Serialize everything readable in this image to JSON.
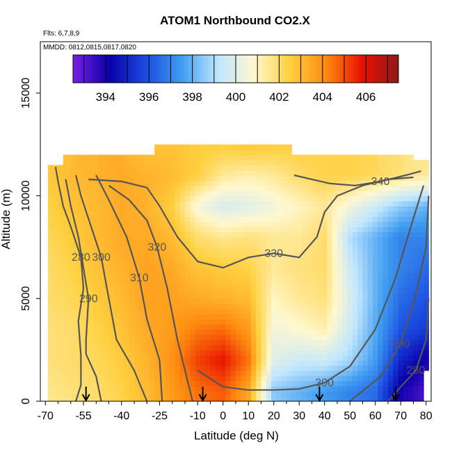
{
  "title": "ATOM1 Northbound CO2.X",
  "flights_label": "Flts: 6,7,8,9",
  "dates_label": "MMDD: 0812,0815,0817,0820",
  "chart_data": {
    "type": "heatmap",
    "title": "ATOM1 Northbound CO2.X",
    "xlabel": "Latitude (deg N)",
    "ylabel": "Altitude (m)",
    "xlim": [
      -72,
      82
    ],
    "ylim": [
      0,
      17500
    ],
    "x_ticks": [
      -70,
      -55,
      -40,
      -25,
      -10,
      0,
      10,
      20,
      30,
      40,
      50,
      60,
      70,
      80
    ],
    "y_ticks": [
      0,
      5000,
      10000,
      15000
    ],
    "colorbar": {
      "vmin": 392.5,
      "vmax": 407.5,
      "ticks": [
        394,
        396,
        398,
        400,
        402,
        404,
        406
      ],
      "colors": [
        "#7a1fe6",
        "#0a00a8",
        "#1a4ae0",
        "#3f9cf0",
        "#bfe6ff",
        "#fff8d0",
        "#ffd040",
        "#ff8a10",
        "#e81000",
        "#8e1a1a"
      ]
    },
    "heatmap_lat": [
      -70,
      -60,
      -50,
      -40,
      -30,
      -20,
      -10,
      0,
      10,
      20,
      30,
      40,
      50,
      60,
      70,
      80
    ],
    "heatmap_alt": [
      500,
      2000,
      3500,
      5000,
      6500,
      8000,
      9500,
      11000,
      12500
    ],
    "heatmap_values": [
      [
        401.6,
        401.8,
        402.0,
        402.4,
        403.0,
        403.8,
        404.5,
        404.8,
        403.5,
        398.5,
        398.0,
        397.5,
        397.0,
        396.5,
        394.0,
        393.2
      ],
      [
        401.8,
        402.0,
        402.2,
        402.6,
        403.2,
        404.0,
        405.2,
        405.8,
        404.5,
        400.0,
        399.5,
        399.5,
        398.8,
        397.5,
        395.0,
        394.0
      ],
      [
        401.8,
        402.0,
        402.4,
        402.8,
        403.4,
        403.8,
        404.4,
        404.6,
        403.8,
        400.5,
        400.8,
        401.2,
        399.5,
        397.8,
        396.0,
        395.5
      ],
      [
        402.0,
        402.2,
        402.6,
        403.0,
        403.6,
        403.6,
        403.4,
        403.2,
        403.0,
        401.0,
        401.5,
        401.8,
        399.8,
        398.0,
        396.5,
        396.0
      ],
      [
        402.0,
        402.4,
        402.8,
        403.2,
        403.6,
        403.4,
        402.8,
        402.6,
        402.4,
        401.5,
        401.8,
        402.0,
        399.5,
        398.0,
        397.0,
        396.5
      ],
      [
        402.2,
        402.6,
        403.0,
        403.4,
        403.4,
        403.0,
        402.0,
        401.6,
        401.8,
        401.5,
        401.5,
        402.0,
        399.0,
        398.0,
        397.0,
        397.0
      ],
      [
        402.4,
        402.8,
        403.0,
        403.4,
        403.2,
        402.5,
        400.5,
        399.8,
        400.0,
        400.5,
        401.0,
        401.5,
        400.5,
        399.5,
        398.5,
        398.0
      ],
      [
        402.6,
        403.0,
        403.2,
        403.4,
        403.2,
        403.0,
        402.5,
        401.5,
        401.2,
        401.5,
        402.0,
        402.4,
        402.4,
        402.2,
        401.8,
        401.5
      ],
      [
        null,
        null,
        null,
        null,
        402.8,
        402.8,
        402.6,
        402.6,
        402.8,
        402.6,
        402.6,
        null,
        null,
        null,
        null,
        null
      ]
    ],
    "contours": [
      {
        "label": "280",
        "points": [
          [
            -58,
            0
          ],
          [
            -56,
            800
          ],
          [
            -56,
            2200
          ],
          [
            -57,
            3900
          ],
          [
            -55,
            5500
          ],
          [
            -56,
            7000
          ],
          [
            -60,
            8500
          ],
          [
            -63,
            9500
          ],
          [
            -65,
            10700
          ],
          [
            -66,
            11400
          ]
        ]
      },
      {
        "label": "290",
        "points": [
          [
            -48,
            0
          ],
          [
            -50,
            1200
          ],
          [
            -54,
            2300
          ],
          [
            -54,
            3000
          ],
          [
            -53,
            5000
          ],
          [
            -55,
            6500
          ],
          [
            -57,
            8000
          ],
          [
            -60,
            9500
          ],
          [
            -62,
            10800
          ]
        ]
      },
      {
        "label": "300",
        "points": [
          [
            -30,
            0
          ],
          [
            -35,
            1500
          ],
          [
            -42,
            3000
          ],
          [
            -45,
            5000
          ],
          [
            -48,
            7000
          ],
          [
            -52,
            8500
          ],
          [
            -56,
            10000
          ],
          [
            -58,
            11000
          ]
        ]
      },
      {
        "label": "310",
        "points": [
          [
            -24,
            0
          ],
          [
            -25,
            2000
          ],
          [
            -30,
            4000
          ],
          [
            -33,
            6000
          ],
          [
            -38,
            8000
          ],
          [
            -45,
            9800
          ],
          [
            -50,
            11000
          ]
        ]
      },
      {
        "label": "320",
        "points": [
          [
            -12,
            0
          ],
          [
            -18,
            3000
          ],
          [
            -22,
            5500
          ],
          [
            -26,
            7500
          ],
          [
            -30,
            8800
          ],
          [
            -37,
            9800
          ],
          [
            -45,
            10500
          ]
        ]
      },
      {
        "label": "330",
        "points": [
          [
            -53,
            10800
          ],
          [
            -40,
            10700
          ],
          [
            -30,
            10400
          ],
          [
            -25,
            9500
          ],
          [
            -18,
            8000
          ],
          [
            -10,
            6800
          ],
          [
            0,
            6500
          ],
          [
            10,
            7000
          ],
          [
            20,
            7200
          ],
          [
            30,
            7000
          ],
          [
            37,
            8000
          ],
          [
            40,
            9200
          ],
          [
            45,
            10000
          ],
          [
            55,
            10500
          ],
          [
            65,
            10800
          ],
          [
            75,
            10900
          ]
        ]
      },
      {
        "label": "340",
        "points": [
          [
            28,
            11000
          ],
          [
            42,
            10600
          ],
          [
            52,
            10500
          ],
          [
            62,
            10700
          ],
          [
            72,
            11000
          ],
          [
            78,
            11200
          ]
        ]
      },
      {
        "label": "300",
        "points": [
          [
            -10,
            1500
          ],
          [
            0,
            700
          ],
          [
            10,
            550
          ],
          [
            20,
            550
          ],
          [
            30,
            600
          ],
          [
            40,
            900
          ],
          [
            50,
            1700
          ],
          [
            60,
            3500
          ],
          [
            68,
            6000
          ],
          [
            74,
            8500
          ],
          [
            79,
            10500
          ]
        ]
      },
      {
        "label": "290",
        "points": [
          [
            50,
            0
          ],
          [
            55,
            500
          ],
          [
            62,
            1200
          ],
          [
            70,
            2800
          ],
          [
            76,
            5200
          ],
          [
            80,
            7500
          ],
          [
            81,
            10000
          ]
        ]
      },
      {
        "label": "280",
        "points": [
          [
            65,
            0
          ],
          [
            70,
            700
          ],
          [
            76,
            1500
          ],
          [
            80,
            3000
          ],
          [
            81,
            5000
          ]
        ]
      }
    ],
    "arrow_latitudes": [
      -54,
      -8,
      38,
      68
    ]
  }
}
